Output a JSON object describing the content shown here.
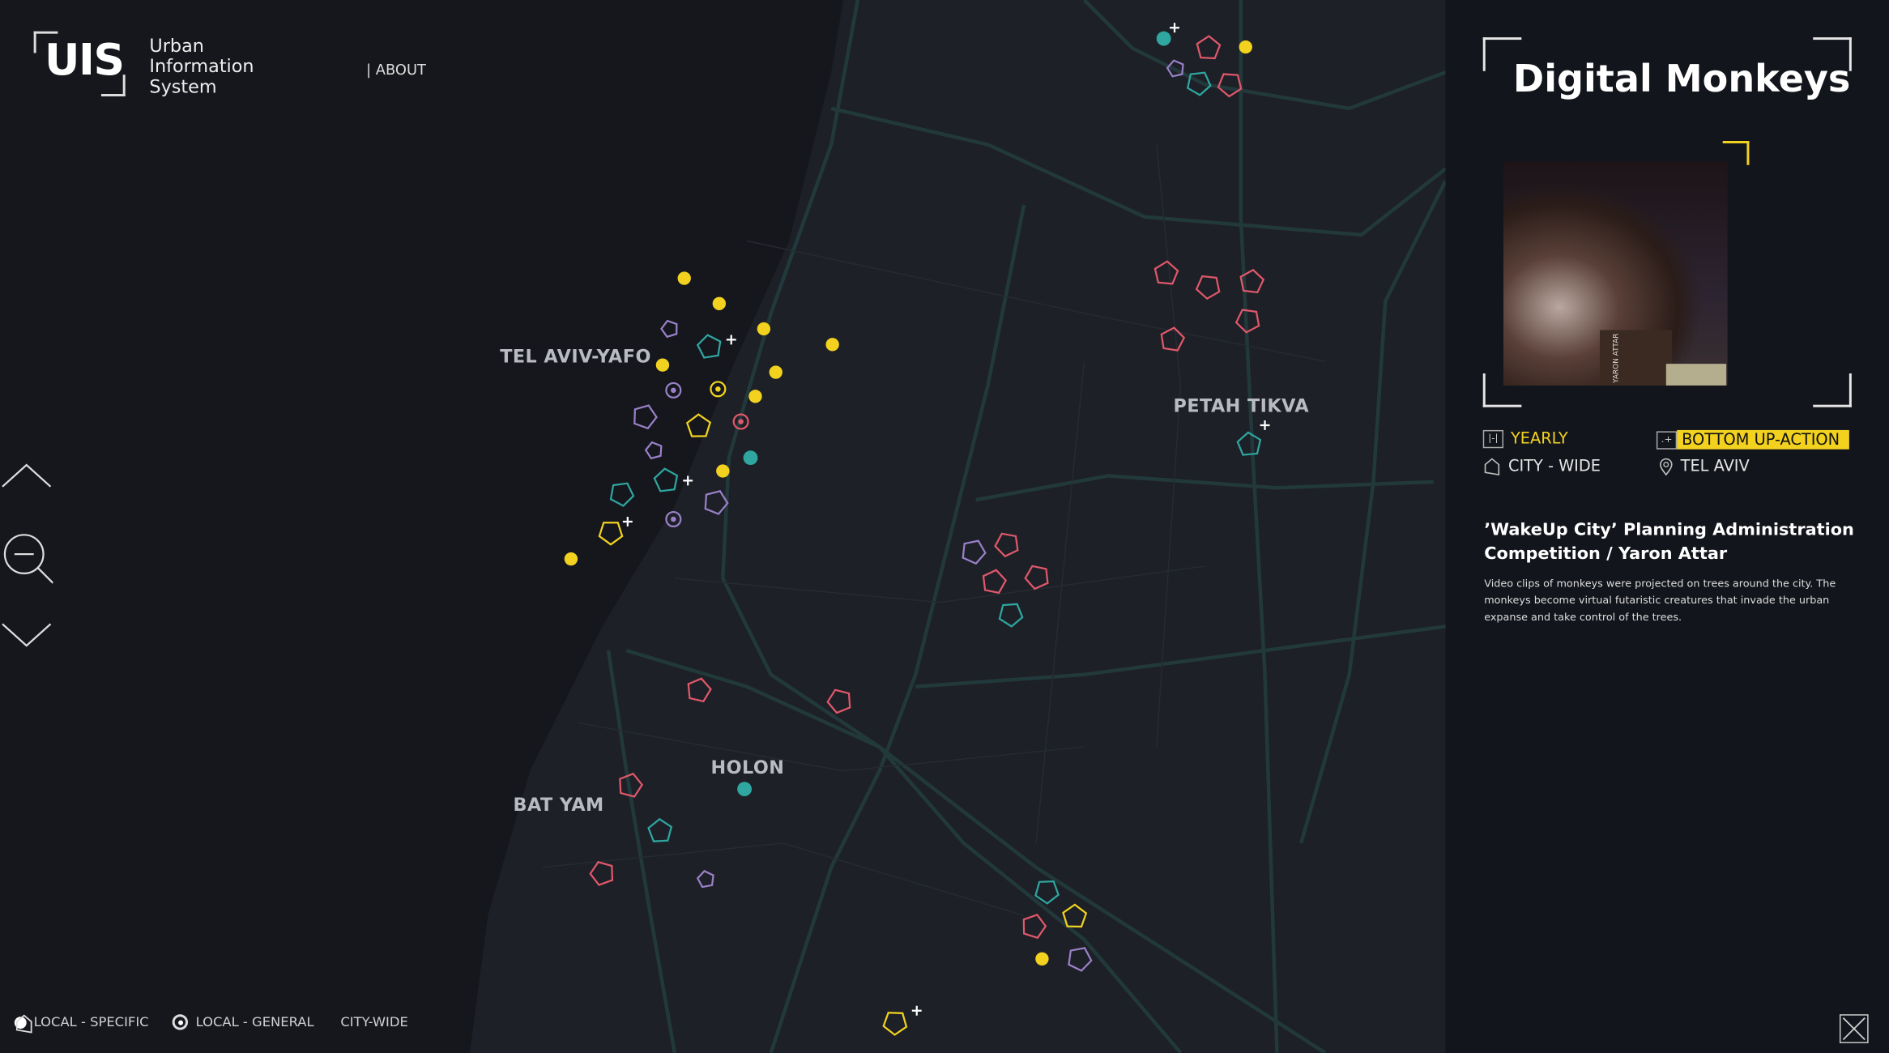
{
  "header": {
    "logo": "UIS",
    "app_name": [
      "Urban",
      "Information",
      "System"
    ],
    "about_label": "| ABOUT"
  },
  "map": {
    "places": {
      "tel_aviv": "TEL AVIV-YAFO",
      "petah_tikva": "PETAH TIKVA",
      "holon": "HOLON",
      "bat_yam": "BAT YAM"
    },
    "controls": {
      "up": "chevron-up-icon",
      "zoom_out": "zoom-out-icon",
      "down": "chevron-down-icon"
    },
    "colors": {
      "yellow": "#f2d21f",
      "teal": "#2fa6a0",
      "red": "#e0586a",
      "purple": "#9a80c8",
      "road": "#22393b"
    }
  },
  "legend": {
    "local_specific": "LOCAL - SPECIFIC",
    "local_general": "LOCAL - GENERAL",
    "city_wide": "CITY-WIDE"
  },
  "detail": {
    "title": "Digital Monkeys",
    "photo_credit": "YARON ATTAR",
    "frequency": "YEARLY",
    "category": "BOTTOM UP-ACTION",
    "scope": "CITY - WIDE",
    "location": "TEL AVIV",
    "subtitle": "’WakeUp City’ Planning Administration Competition / Yaron Attar",
    "description": "Video clips of monkeys were projected on trees around the city. The monkeys become virtual futaristic creatures that invade the urban expanse and take control of the trees."
  }
}
